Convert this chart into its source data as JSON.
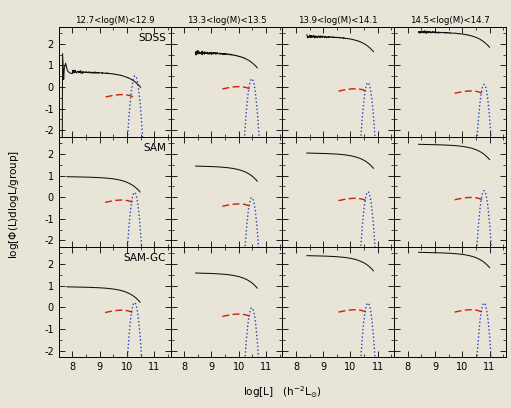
{
  "col_labels": [
    "12.7<log(M)<12.9",
    "13.3<log(M)<13.5",
    "13.9<log(M)<14.1",
    "14.5<log(M)<14.7"
  ],
  "row_labels": [
    "SDSS",
    "SAM",
    "SAM-GC"
  ],
  "xlim": [
    7.5,
    11.6
  ],
  "ylim": [
    -2.3,
    2.8
  ],
  "yticks": [
    -2,
    -1,
    0,
    1,
    2
  ],
  "xticks": [
    8,
    9,
    10,
    11
  ],
  "background": "#e8e4d8",
  "line_color": "#111111",
  "dashed_color": "#cc2200",
  "dotted_color": "#2244bb"
}
